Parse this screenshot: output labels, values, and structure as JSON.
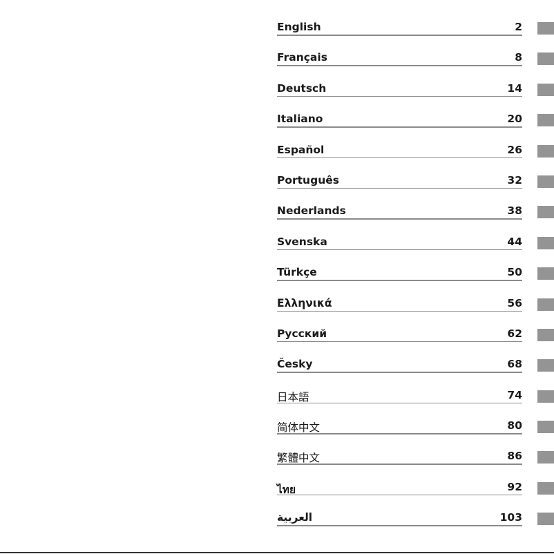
{
  "toc": [
    {
      "label": "English",
      "page": "2"
    },
    {
      "label": "Français",
      "page": "8"
    },
    {
      "label": "Deutsch",
      "page": "14"
    },
    {
      "label": "Italiano",
      "page": "20"
    },
    {
      "label": "Español",
      "page": "26"
    },
    {
      "label": "Português",
      "page": "32"
    },
    {
      "label": "Nederlands",
      "page": "38"
    },
    {
      "label": "Svenska",
      "page": "44"
    },
    {
      "label": "Türkçe",
      "page": "50"
    },
    {
      "label": "Ελληνικά",
      "page": "56"
    },
    {
      "label": "Русский",
      "page": "62"
    },
    {
      "label": "Česky",
      "page": "68"
    },
    {
      "label": "日本語",
      "page": "74"
    },
    {
      "label": "简体中文",
      "page": "80"
    },
    {
      "label": "繁體中文",
      "page": "86"
    },
    {
      "label": "ไทย",
      "page": "92"
    },
    {
      "label": "العربية",
      "page": "103"
    }
  ],
  "colors": {
    "tab": "#949494",
    "rule": "#8a8a8a",
    "text": "#1a1a1a"
  }
}
